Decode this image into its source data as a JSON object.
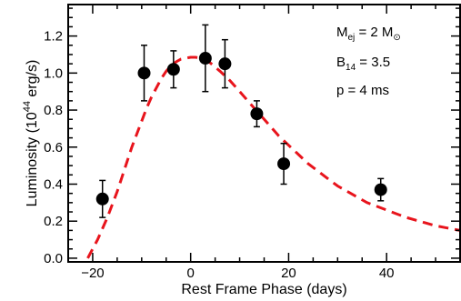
{
  "chart_data": {
    "type": "scatter",
    "xlabel": "Rest Frame Phase (days)",
    "ylabel": {
      "main": "Luminosity (10",
      "sup": "44",
      "tail": " erg/s)"
    },
    "xlim": [
      -25,
      55
    ],
    "ylim": [
      -0.02,
      1.37
    ],
    "xticks": [
      -20,
      0,
      20,
      40
    ],
    "xtick_labels": [
      "−20",
      "0",
      "20",
      "40"
    ],
    "xminor_step": 5,
    "yticks": [
      0.0,
      0.2,
      0.4,
      0.6,
      0.8,
      1.0,
      1.2
    ],
    "ytick_labels": [
      "0.0",
      "0.2",
      "0.4",
      "0.6",
      "0.8",
      "1.0",
      "1.2"
    ],
    "yminor_step": 0.05,
    "grid": false,
    "series": [
      {
        "kind": "points_with_errorbars",
        "color": "#000000",
        "x": [
          -18,
          -9.5,
          -3.5,
          3.0,
          7.0,
          13.5,
          19.0,
          38.8
        ],
        "y": [
          0.32,
          1.0,
          1.02,
          1.08,
          1.05,
          0.78,
          0.51,
          0.37
        ],
        "yerr": [
          0.1,
          0.15,
          0.1,
          0.18,
          0.13,
          0.07,
          0.11,
          0.06
        ]
      },
      {
        "kind": "model_curve",
        "color": "#e8141c",
        "style": "dashed",
        "x": [
          -21,
          -20,
          -19,
          -18,
          -17,
          -16,
          -15,
          -14,
          -13,
          -12,
          -11,
          -10,
          -9,
          -8,
          -7,
          -6,
          -5,
          -4,
          -3,
          -2,
          -1,
          0,
          1,
          2,
          3,
          4,
          6,
          8,
          10,
          12,
          14,
          16,
          18,
          20,
          22,
          24,
          26,
          28,
          30,
          32,
          34,
          36,
          38,
          40,
          42,
          44,
          46,
          48,
          50,
          52,
          55
        ],
        "y": [
          0.0,
          0.05,
          0.1,
          0.16,
          0.22,
          0.29,
          0.36,
          0.44,
          0.52,
          0.6,
          0.67,
          0.74,
          0.81,
          0.87,
          0.92,
          0.97,
          1.01,
          1.04,
          1.06,
          1.075,
          1.08,
          1.085,
          1.085,
          1.08,
          1.07,
          1.055,
          1.01,
          0.96,
          0.9,
          0.84,
          0.78,
          0.72,
          0.66,
          0.61,
          0.56,
          0.51,
          0.47,
          0.43,
          0.39,
          0.36,
          0.33,
          0.3,
          0.28,
          0.26,
          0.24,
          0.22,
          0.205,
          0.19,
          0.175,
          0.165,
          0.15
        ]
      }
    ],
    "annotations": [
      {
        "main": "M",
        "sub": "ej",
        "rest": " = 2 M",
        "symbol": "⊙"
      },
      {
        "main": "B",
        "sub": "14",
        "rest": " = 3.5"
      },
      {
        "main": "p = 4 ms"
      }
    ]
  }
}
